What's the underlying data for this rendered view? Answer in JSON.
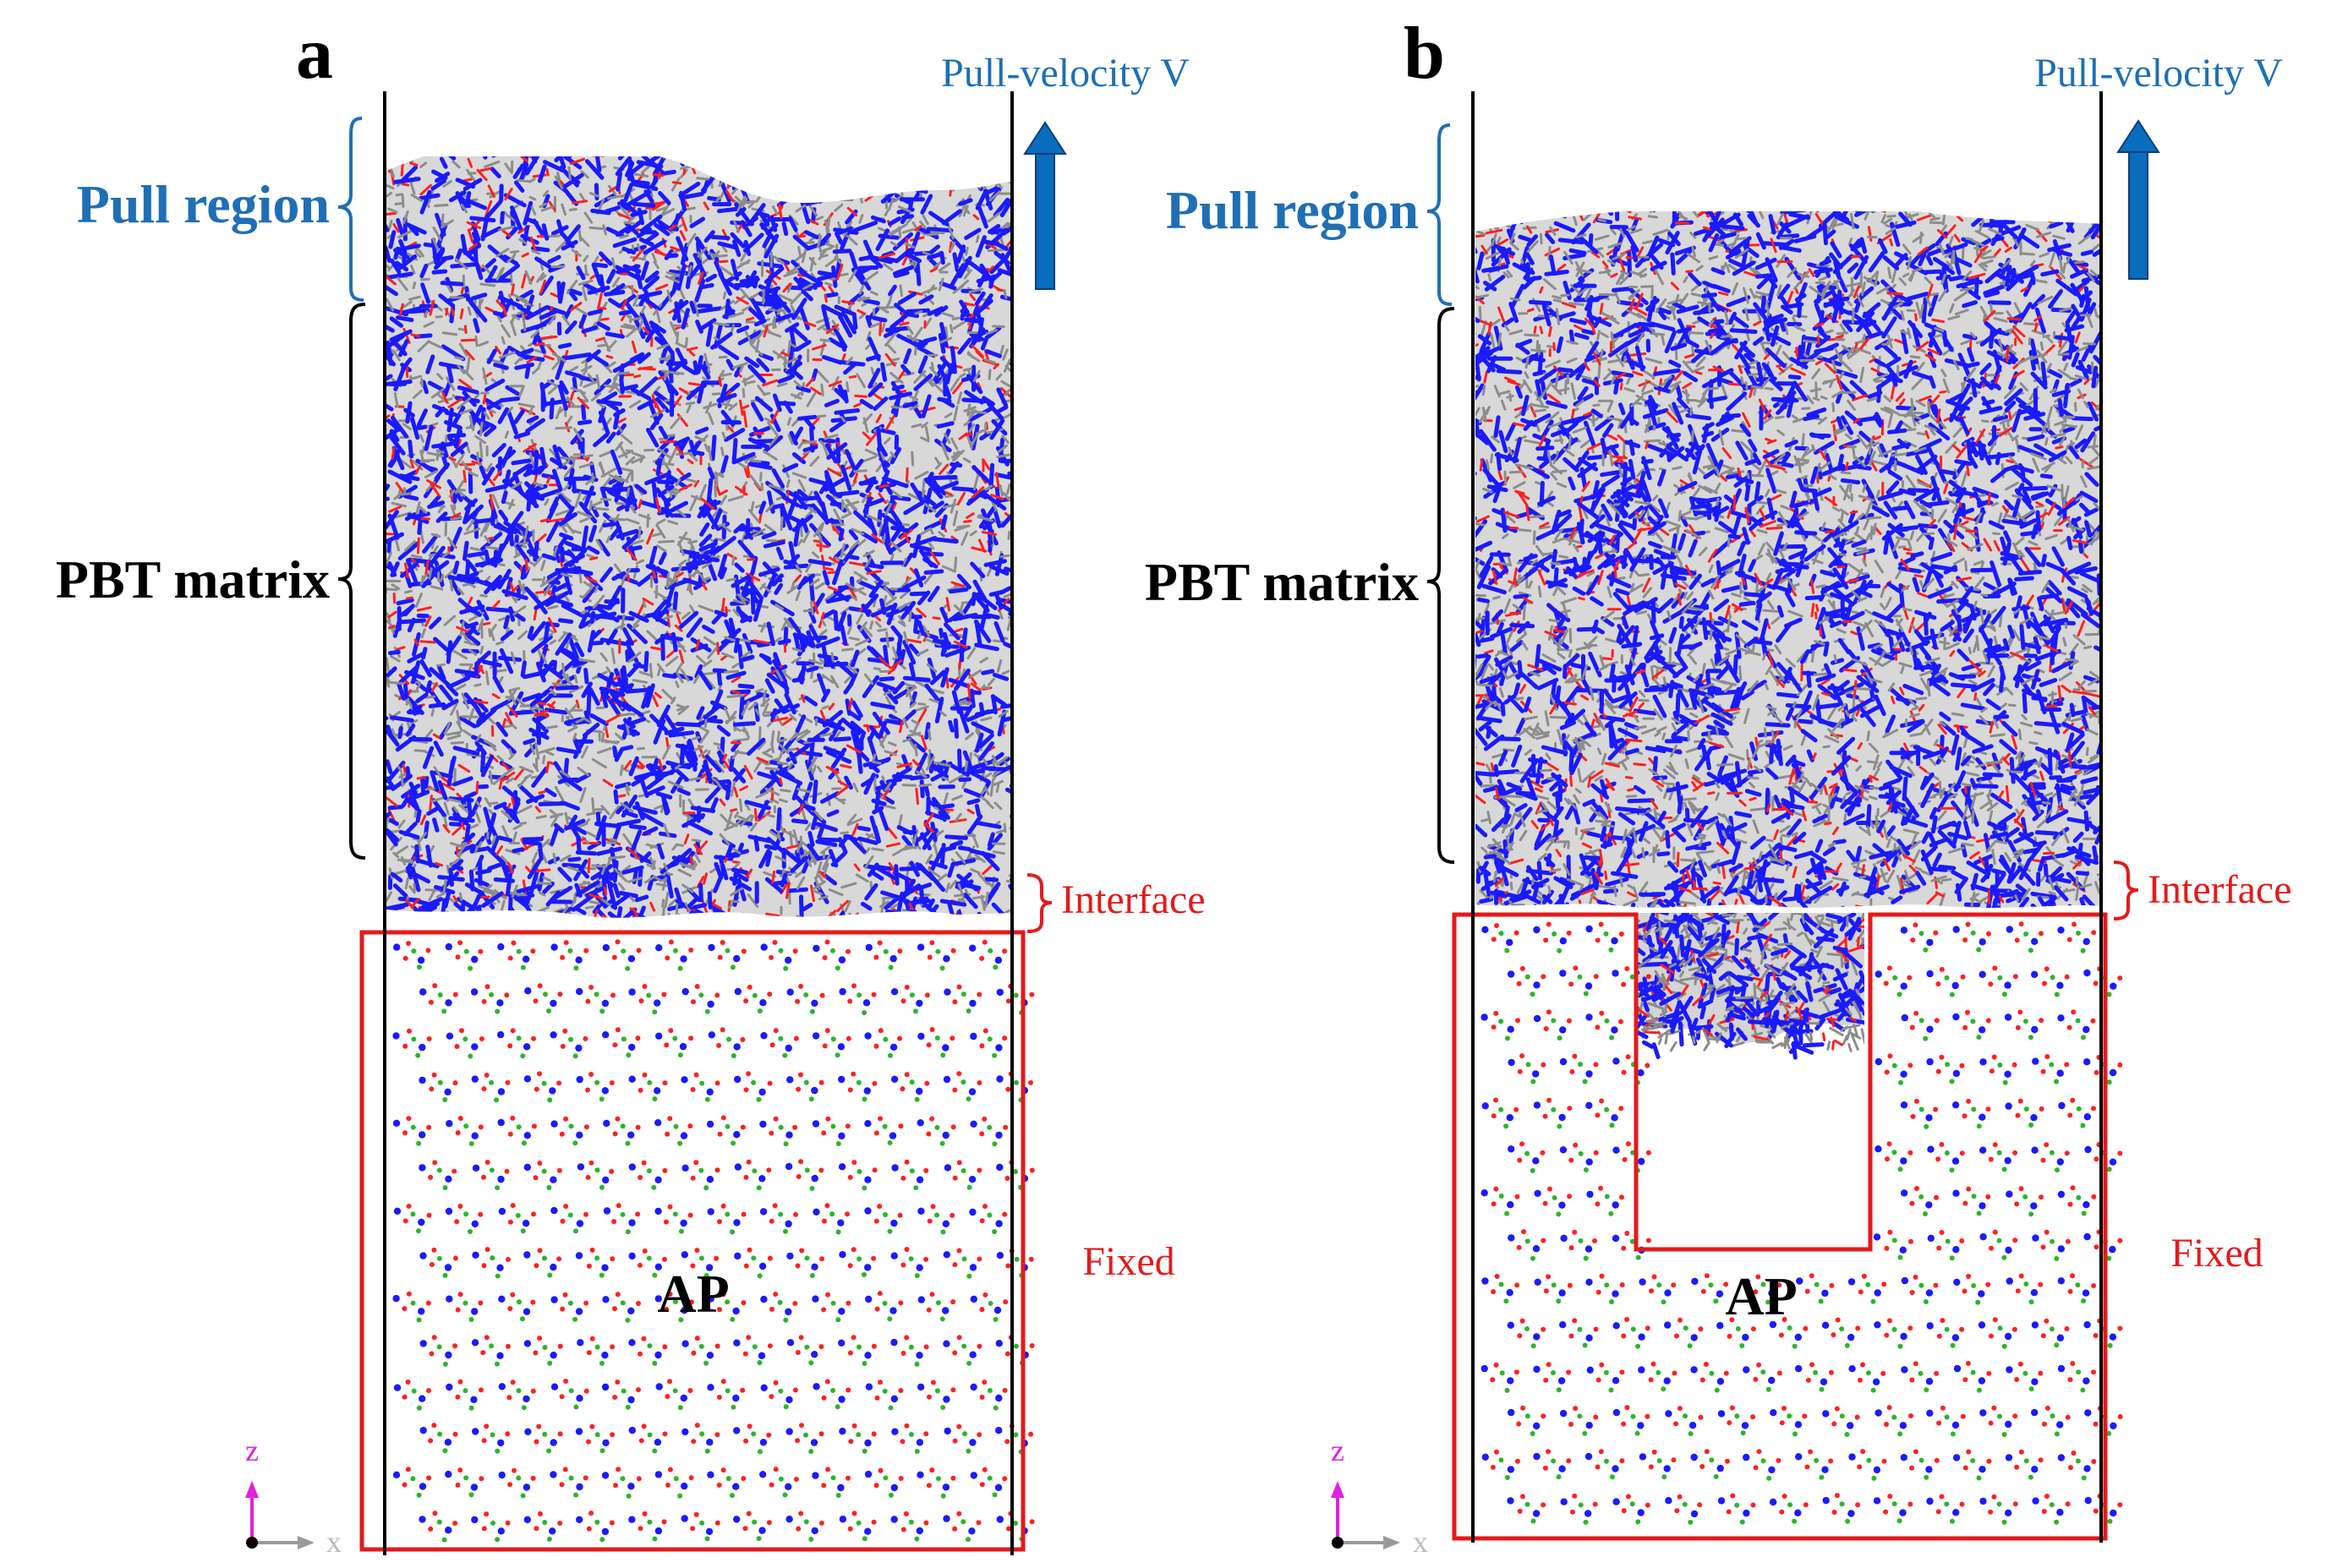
{
  "panels": [
    {
      "letter": "a",
      "pull_velocity": "Pull-velocity V",
      "pull_region": "Pull region",
      "pbt_matrix": "PBT matrix",
      "interface": "Interface",
      "ap": "AP",
      "fixed": "Fixed",
      "axis_z": "z",
      "axis_x": "x",
      "has_hole": false
    },
    {
      "letter": "b",
      "pull_velocity": "Pull-velocity V",
      "pull_region": "Pull region",
      "pbt_matrix": "PBT matrix",
      "interface": "Interface",
      "ap": "AP",
      "fixed": "Fixed",
      "axis_z": "z",
      "axis_x": "x",
      "has_hole": true
    }
  ],
  "colors": {
    "pull_label": "#1f6fb5",
    "arrow": "#0a6cbd",
    "frame_red": "#e41a1a",
    "text_black": "#000000",
    "polymer_blue": "#1a1aff",
    "polymer_gray": "#8c8c8c",
    "polymer_red": "#ff2020",
    "crystal_green": "#2bb52b",
    "axis_magenta": "#e020e0"
  }
}
